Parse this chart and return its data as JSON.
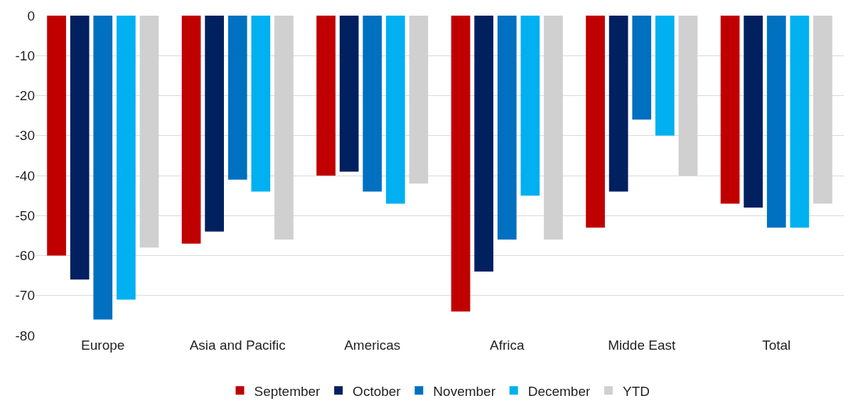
{
  "chart_data": {
    "type": "bar",
    "categories": [
      "Europe",
      "Asia and Pacific",
      "Americas",
      "Africa",
      "Midde East",
      "Total"
    ],
    "series": [
      {
        "name": "September",
        "color": "#c00000",
        "values": [
          -60,
          -57,
          -40,
          -74,
          -53,
          -47
        ]
      },
      {
        "name": "October",
        "color": "#002060",
        "values": [
          -66,
          -54,
          -39,
          -64,
          -44,
          -48
        ]
      },
      {
        "name": "November",
        "color": "#0070c0",
        "values": [
          -76,
          -41,
          -44,
          -56,
          -26,
          -53
        ]
      },
      {
        "name": "December",
        "color": "#00b0f0",
        "values": [
          -71,
          -44,
          -47,
          -45,
          -30,
          -53
        ]
      },
      {
        "name": "YTD",
        "color": "#d0d0d0",
        "values": [
          -58,
          -56,
          -42,
          -56,
          -40,
          -47
        ]
      }
    ],
    "ylim": [
      -80,
      0
    ],
    "yticks": [
      0,
      -10,
      -20,
      -30,
      -40,
      -50,
      -60,
      -70,
      -80
    ],
    "grid": "y",
    "legend": "bottom"
  }
}
